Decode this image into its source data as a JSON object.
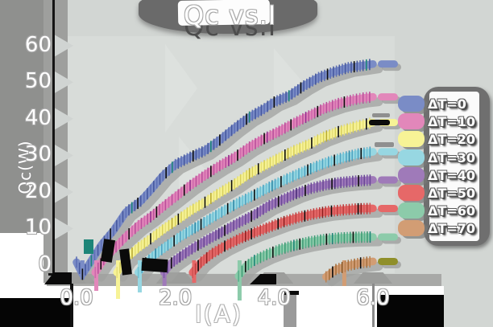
{
  "title": "Qc vs.I",
  "axes": {
    "xlabel": "I(A)",
    "ylabel": "Qc(W)",
    "x_ticks": [
      {
        "label": "0.0",
        "value": 0
      },
      {
        "label": "2.0",
        "value": 2
      },
      {
        "label": "4.0",
        "value": 4
      },
      {
        "label": "6.0",
        "value": 6
      }
    ],
    "y_ticks": [
      {
        "label": "0",
        "value": 0
      },
      {
        "label": "10",
        "value": 10
      },
      {
        "label": "20",
        "value": 20
      },
      {
        "label": "30",
        "value": 30
      },
      {
        "label": "40",
        "value": 40
      },
      {
        "label": "50",
        "value": 50
      },
      {
        "label": "60",
        "value": 60
      }
    ]
  },
  "legend": {
    "position": "right",
    "items": [
      {
        "label": "ΔT=0",
        "color": "#7a8cc6"
      },
      {
        "label": "ΔT=10",
        "color": "#e287ba"
      },
      {
        "label": "ΔT=20",
        "color": "#f7f396"
      },
      {
        "label": "ΔT=30",
        "color": "#97d7e2"
      },
      {
        "label": "ΔT=40",
        "color": "#9f7ab9"
      },
      {
        "label": "ΔT=50",
        "color": "#e66868"
      },
      {
        "label": "ΔT=60",
        "color": "#8ccbaa"
      },
      {
        "label": "ΔT=70",
        "color": "#d29d74"
      }
    ]
  },
  "chart_data": {
    "type": "line",
    "title": "Qc vs.I",
    "xlabel": "I(A)",
    "ylabel": "Qc(W)",
    "x_range": [
      0,
      6.5
    ],
    "y_range": [
      0,
      60
    ],
    "grid": false,
    "legend_position": "right",
    "series": [
      {
        "name": "ΔT=0",
        "color": "#7a8cc6",
        "hatch": [
          "#46589f",
          "#5d6fb5",
          "#1d8578"
        ],
        "dash": null,
        "zero": 0.12,
        "drip": 16,
        "points": [
          [
            0,
            0.8
          ],
          [
            0.12,
            -2.5
          ],
          [
            0.3,
            1.2
          ],
          [
            0.5,
            5.5
          ],
          [
            0.75,
            9.5
          ],
          [
            1,
            14.5
          ],
          [
            1.3,
            17.5
          ],
          [
            1.5,
            20.5
          ],
          [
            1.75,
            24.5
          ],
          [
            2,
            27.5
          ],
          [
            2.3,
            29.5
          ],
          [
            2.6,
            31.3
          ],
          [
            2.9,
            34.2
          ],
          [
            3.2,
            37.5
          ],
          [
            3.5,
            40.5
          ],
          [
            3.8,
            42.8
          ],
          [
            4,
            44.6
          ],
          [
            4.3,
            46.3
          ],
          [
            4.6,
            49
          ],
          [
            4.9,
            51.3
          ],
          [
            5.2,
            52.8
          ],
          [
            5.5,
            54
          ],
          [
            5.8,
            54.6
          ],
          [
            6,
            55
          ]
        ]
      },
      {
        "name": "ΔT=10",
        "color": "#e287ba",
        "hatch": [
          "#b9509b",
          "#cf68ac",
          "#93308f"
        ],
        "dash": null,
        "zero": 0.4,
        "drip": 30,
        "points": [
          [
            0.38,
            -2
          ],
          [
            0.55,
            1.5
          ],
          [
            0.8,
            5
          ],
          [
            1,
            7.8
          ],
          [
            1.25,
            10.8
          ],
          [
            1.5,
            13.2
          ],
          [
            1.8,
            16.5
          ],
          [
            2,
            18.6
          ],
          [
            2.3,
            21.8
          ],
          [
            2.6,
            24.6
          ],
          [
            2.9,
            27.2
          ],
          [
            3.2,
            29.5
          ],
          [
            3.5,
            32.3
          ],
          [
            3.8,
            34.6
          ],
          [
            4.1,
            36.6
          ],
          [
            4.4,
            38.8
          ],
          [
            4.7,
            40.8
          ],
          [
            5,
            42.8
          ],
          [
            5.3,
            44.2
          ],
          [
            5.6,
            45.2
          ],
          [
            5.8,
            45.7
          ],
          [
            6,
            46
          ]
        ]
      },
      {
        "name": "ΔT=20",
        "color": "#f7f396",
        "hatch": [
          "#d8d05c",
          "#e6df78",
          "#b9ab33"
        ],
        "dash": null,
        "zero": 0.84,
        "drip": 40,
        "points": [
          [
            0.82,
            -2
          ],
          [
            1,
            1.8
          ],
          [
            1.25,
            4.8
          ],
          [
            1.5,
            7.2
          ],
          [
            1.8,
            10.2
          ],
          [
            2,
            12
          ],
          [
            2.3,
            14.8
          ],
          [
            2.6,
            17.2
          ],
          [
            2.9,
            19.8
          ],
          [
            3.2,
            22.2
          ],
          [
            3.5,
            25
          ],
          [
            3.8,
            27.2
          ],
          [
            4.1,
            29.3
          ],
          [
            4.4,
            31.3
          ],
          [
            4.7,
            33
          ],
          [
            5,
            35
          ],
          [
            5.3,
            36.5
          ],
          [
            5.6,
            37.7
          ],
          [
            5.8,
            38.4
          ],
          [
            6,
            39
          ]
        ]
      },
      {
        "name": "ΔT=30",
        "color": "#97d7e2",
        "hatch": [
          "#4fa4c2",
          "#6fc0d2",
          "#2f89a6"
        ],
        "dash": null,
        "zero": 1.28,
        "drip": 32,
        "points": [
          [
            1.25,
            -2
          ],
          [
            1.4,
            0.6
          ],
          [
            1.6,
            3
          ],
          [
            1.85,
            5.5
          ],
          [
            2.1,
            7.8
          ],
          [
            2.4,
            10.2
          ],
          [
            2.7,
            12.6
          ],
          [
            3,
            15
          ],
          [
            3.3,
            17.2
          ],
          [
            3.6,
            19.2
          ],
          [
            3.9,
            21.3
          ],
          [
            4.2,
            23.2
          ],
          [
            4.5,
            25
          ],
          [
            4.8,
            26.7
          ],
          [
            5.1,
            28.2
          ],
          [
            5.4,
            29.4
          ],
          [
            5.7,
            30.4
          ],
          [
            6,
            31
          ]
        ]
      },
      {
        "name": "ΔT=40",
        "color": "#9f7ab9",
        "hatch": [
          "#6b4897",
          "#7e59a9",
          "#492d78"
        ],
        "dash": null,
        "zero": 1.78,
        "drip": 24,
        "points": [
          [
            1.77,
            -2
          ],
          [
            1.92,
            0.6
          ],
          [
            2.15,
            2.8
          ],
          [
            2.4,
            5
          ],
          [
            2.7,
            7.3
          ],
          [
            3,
            9.5
          ],
          [
            3.3,
            11.7
          ],
          [
            3.6,
            13.8
          ],
          [
            3.9,
            16.3
          ],
          [
            4.15,
            17.8
          ],
          [
            4.45,
            19.6
          ],
          [
            4.75,
            21
          ],
          [
            5.05,
            22
          ],
          [
            5.35,
            22.6
          ],
          [
            5.65,
            23
          ],
          [
            6,
            23.3
          ]
        ]
      },
      {
        "name": "ΔT=50",
        "color": "#e66868",
        "hatch": [
          "#bd3f3f",
          "#cf5454",
          "#8e2020"
        ],
        "dash": null,
        "zero": 2.38,
        "drip": 20,
        "points": [
          [
            2.35,
            -2
          ],
          [
            2.52,
            0.8
          ],
          [
            2.75,
            3.2
          ],
          [
            3,
            5.2
          ],
          [
            3.3,
            7.2
          ],
          [
            3.6,
            8.9
          ],
          [
            3.9,
            10.4
          ],
          [
            4.2,
            11.9
          ],
          [
            4.5,
            13.1
          ],
          [
            4.8,
            14
          ],
          [
            5.1,
            14.7
          ],
          [
            5.4,
            15.1
          ],
          [
            5.7,
            15.4
          ],
          [
            6,
            15.5
          ]
        ]
      },
      {
        "name": "ΔT=60",
        "color": "#8ccbaa",
        "hatch": [
          "#3f9c75",
          "#57ae8b",
          "#1d8578"
        ],
        "dash": null,
        "zero": 3.3,
        "drip": 42,
        "points": [
          [
            3.28,
            -3
          ],
          [
            3.42,
            -0.4
          ],
          [
            3.6,
            1.3
          ],
          [
            3.85,
            2.9
          ],
          [
            4.1,
            4.2
          ],
          [
            4.4,
            5.4
          ],
          [
            4.7,
            6.3
          ],
          [
            5,
            7
          ],
          [
            5.3,
            7.4
          ],
          [
            5.6,
            7.6
          ],
          [
            6,
            7.7
          ]
        ]
      },
      {
        "name": "ΔT=70",
        "color": "#d29d74",
        "hatch": [
          "#a56f3d",
          "#b98253",
          "#875828"
        ],
        "dash": "#8f8f2a",
        "zero": 5.42,
        "drip": 24,
        "points": [
          [
            5.05,
            -3.2
          ],
          [
            5.25,
            -1.2
          ],
          [
            5.5,
            -0.1
          ],
          [
            5.75,
            0.6
          ],
          [
            6,
            1
          ]
        ]
      }
    ]
  }
}
